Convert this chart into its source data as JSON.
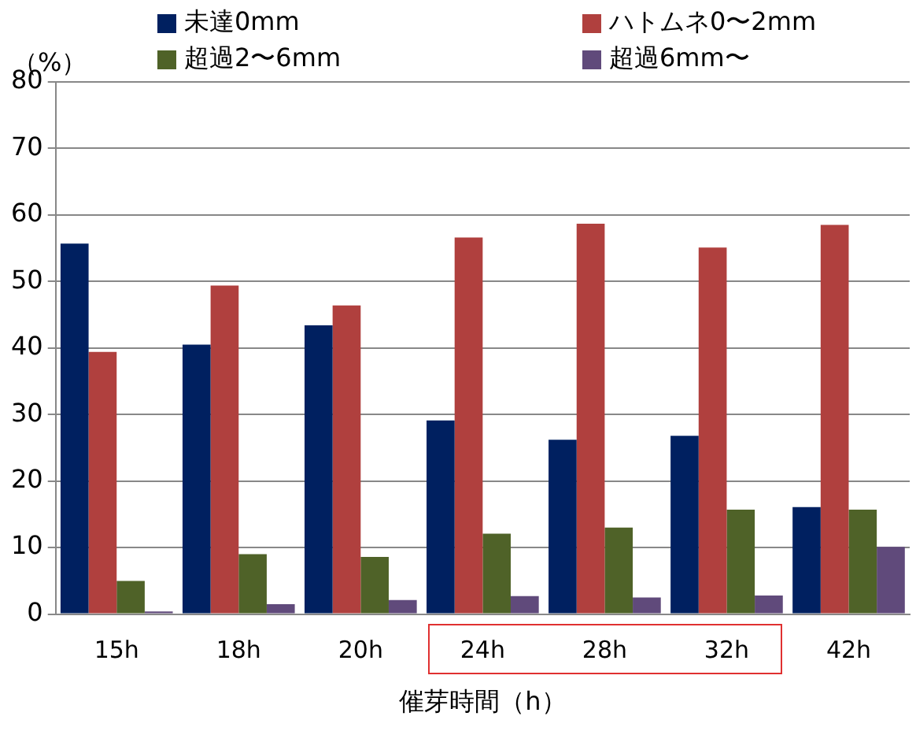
{
  "chart_data": {
    "type": "bar",
    "ylabel": "（%）",
    "xlabel": "催芽時間（h）",
    "categories": [
      "15h",
      "18h",
      "20h",
      "24h",
      "28h",
      "32h",
      "42h"
    ],
    "series": [
      {
        "name": "未達0mm",
        "color": "#002060",
        "values": [
          55.7,
          40.5,
          43.4,
          29.1,
          26.2,
          26.8,
          16.1
        ]
      },
      {
        "name": "ハトムネ0〜2mm",
        "color": "#b0403e",
        "values": [
          39.4,
          49.4,
          46.4,
          56.6,
          58.7,
          55.1,
          58.5
        ]
      },
      {
        "name": "超過2〜6mm",
        "color": "#4f6228",
        "values": [
          5.0,
          9.0,
          8.6,
          12.1,
          13.0,
          15.7,
          15.7
        ]
      },
      {
        "name": "超過6mm〜",
        "color": "#604a7b",
        "values": [
          0.4,
          1.5,
          2.1,
          2.7,
          2.5,
          2.8,
          10.1
        ]
      }
    ],
    "ylim": [
      0,
      80
    ],
    "yticks": [
      0,
      10,
      20,
      30,
      40,
      50,
      60,
      70,
      80
    ],
    "grid": "y",
    "legend": "top"
  }
}
